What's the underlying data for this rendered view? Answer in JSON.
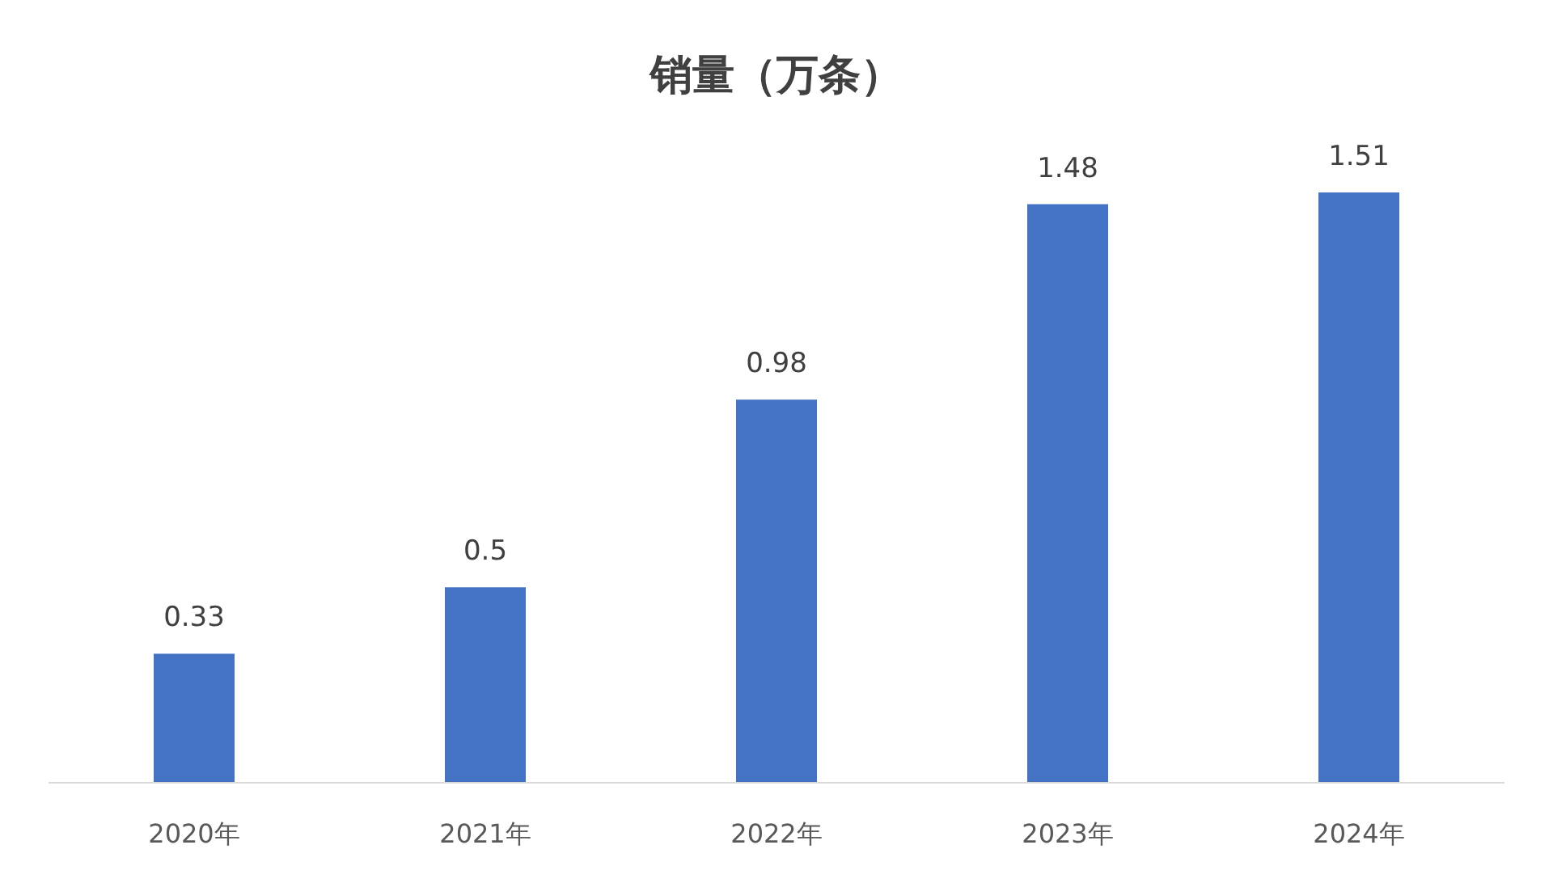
{
  "chart_data": {
    "type": "bar",
    "title": "销量（万条）",
    "categories": [
      "2020年",
      "2021年",
      "2022年",
      "2023年",
      "2024年"
    ],
    "values": [
      0.33,
      0.5,
      0.98,
      1.48,
      1.51
    ],
    "color": "#4472c4",
    "data_labels": true,
    "grid": false
  }
}
